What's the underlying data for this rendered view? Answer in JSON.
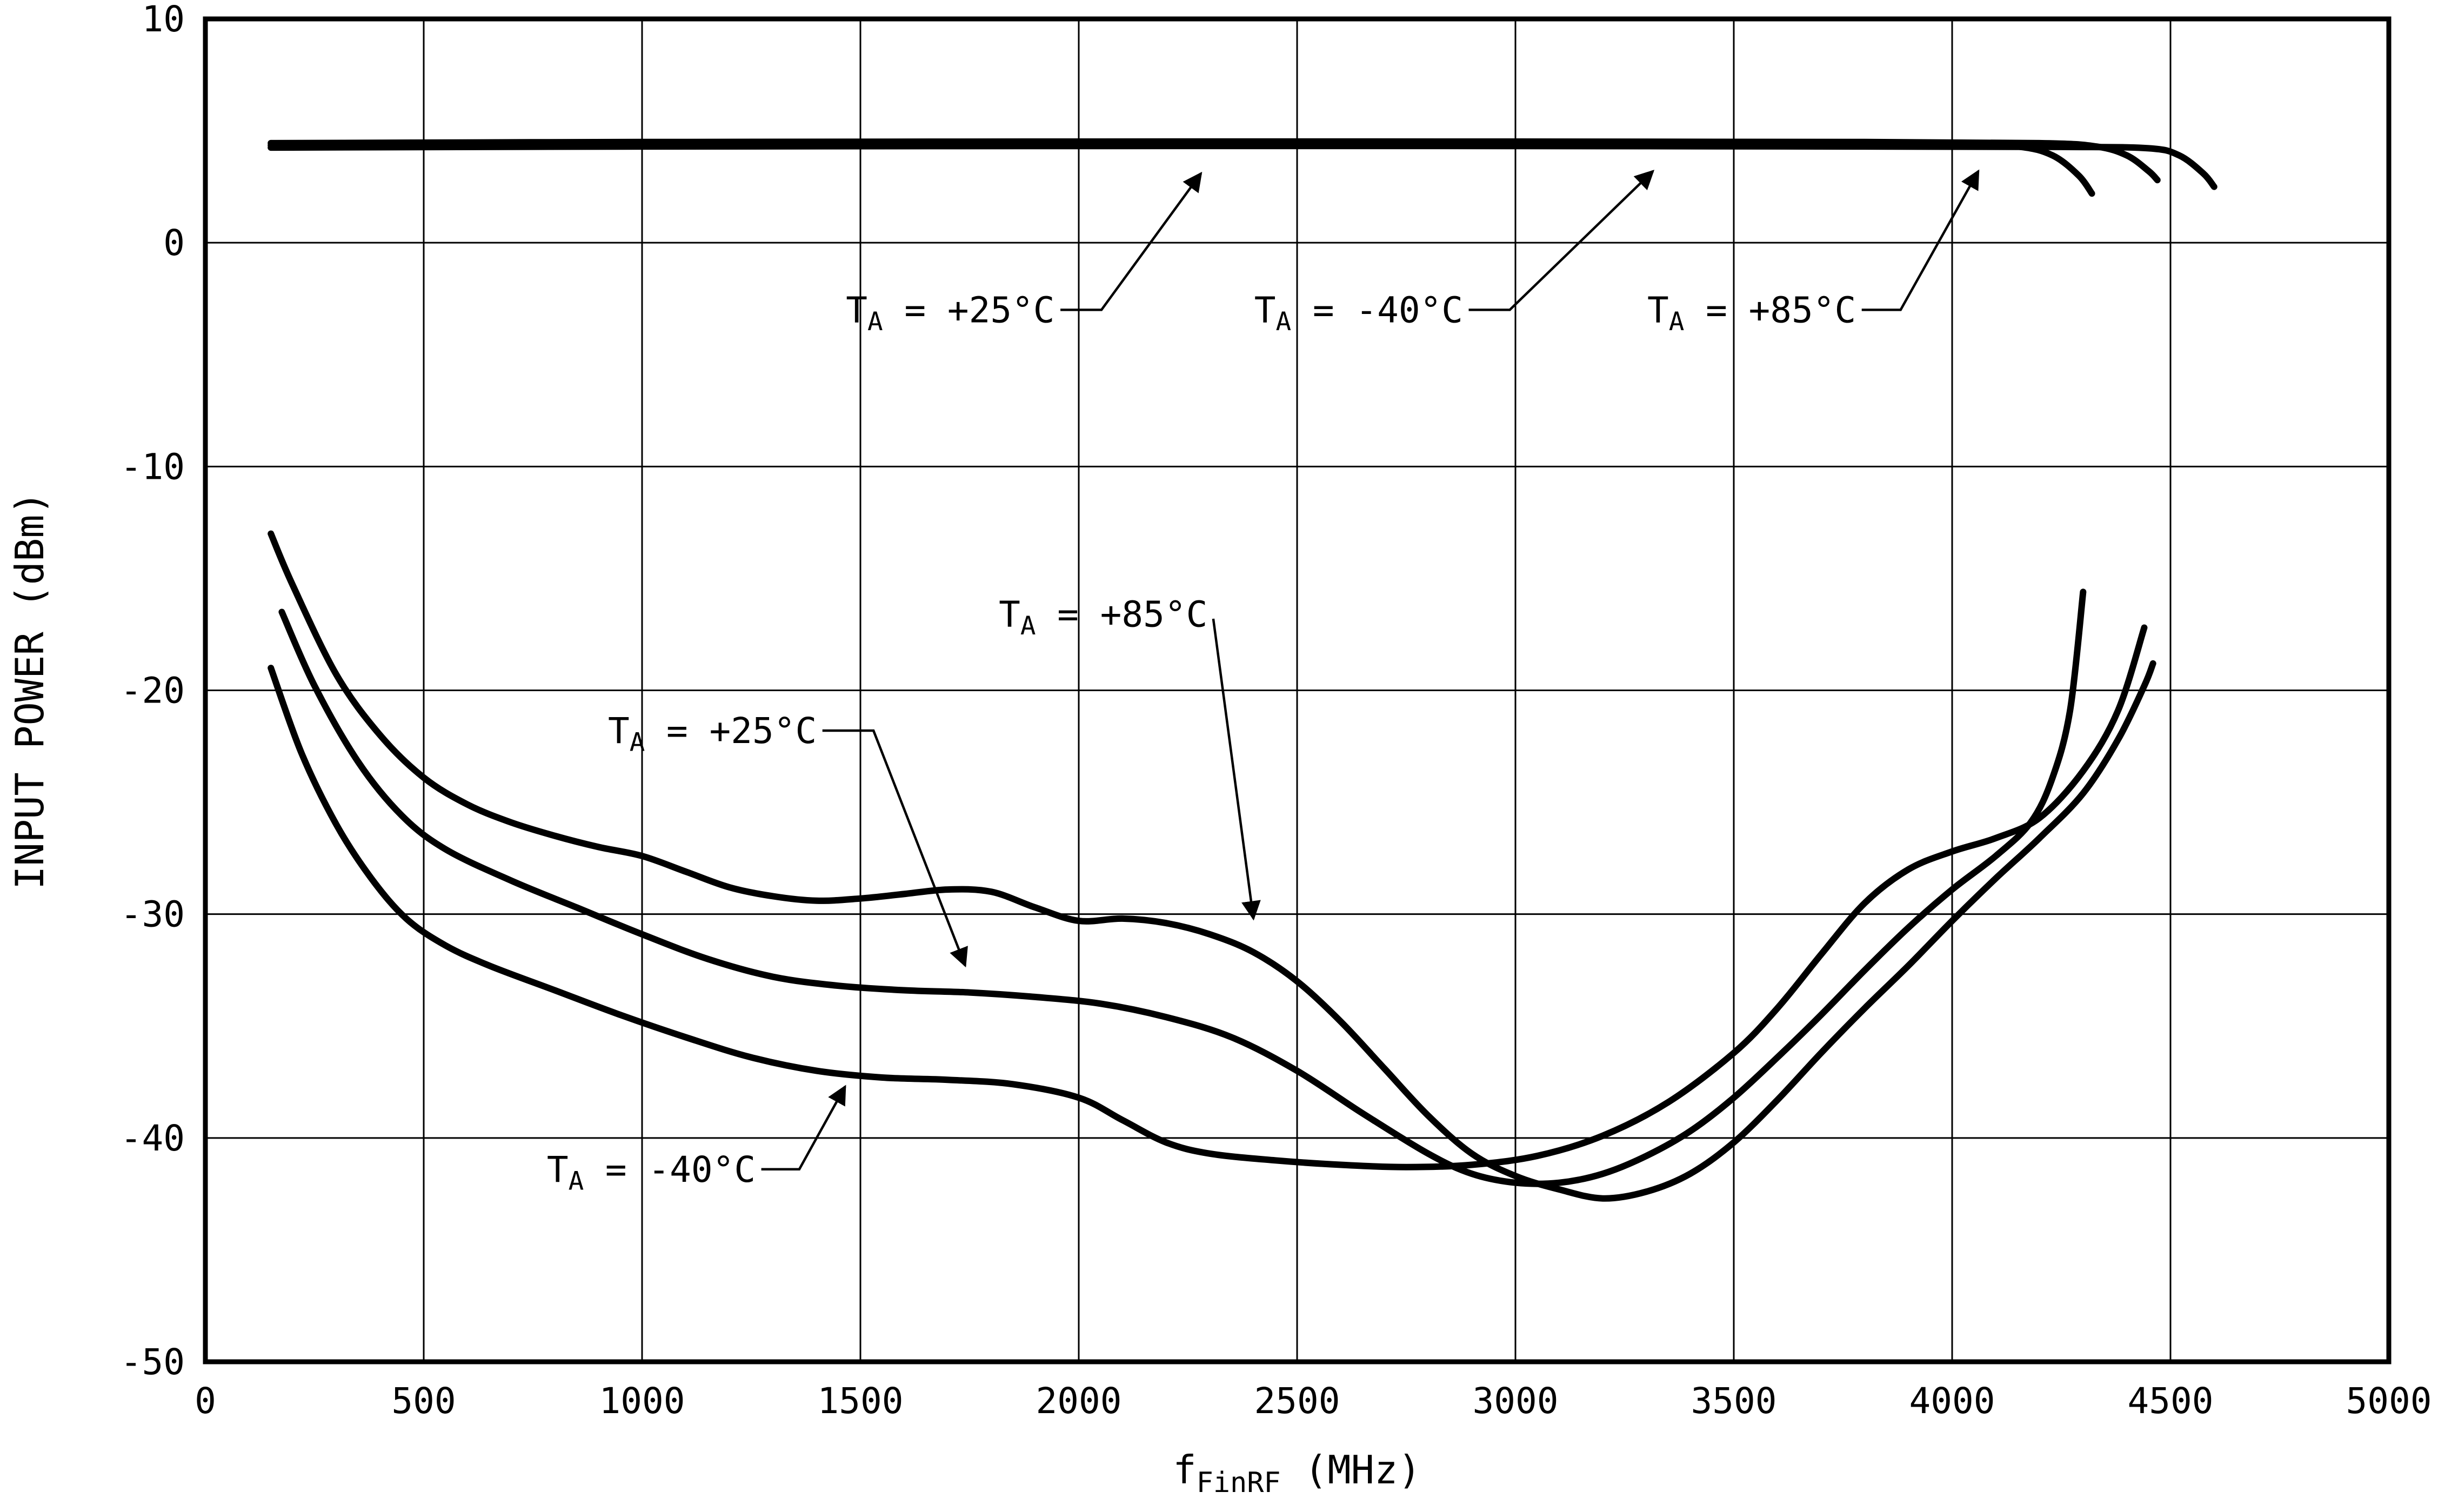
{
  "chart_data": {
    "type": "line",
    "title": "",
    "xlabel": {
      "prefix": "f",
      "sub": "FinRF",
      "suffix": " (MHz)"
    },
    "ylabel": "INPUT POWER (dBm)",
    "xlim": [
      0,
      5000
    ],
    "ylim": [
      -50,
      10
    ],
    "x_ticks": [
      0,
      500,
      1000,
      1500,
      2000,
      2500,
      3000,
      3500,
      4000,
      4500,
      5000
    ],
    "y_ticks": [
      10,
      0,
      -10,
      -20,
      -30,
      -40,
      -50
    ],
    "grid": true,
    "line_color": "#000000",
    "background": "#ffffff",
    "legend_position": "inline-annotations",
    "series": [
      {
        "name": "max-input-power-ta-plus25c",
        "label": "TA = +25°C",
        "points": [
          [
            150,
            4.35
          ],
          [
            1000,
            4.4
          ],
          [
            2000,
            4.42
          ],
          [
            3000,
            4.42
          ],
          [
            3600,
            4.4
          ],
          [
            4000,
            4.38
          ],
          [
            4150,
            4.3
          ],
          [
            4230,
            3.9
          ],
          [
            4290,
            3.0
          ],
          [
            4320,
            2.2
          ]
        ]
      },
      {
        "name": "max-input-power-ta-minus40c",
        "label": "TA = -40°C",
        "points": [
          [
            150,
            4.45
          ],
          [
            1000,
            4.5
          ],
          [
            2000,
            4.52
          ],
          [
            3000,
            4.52
          ],
          [
            3800,
            4.5
          ],
          [
            4200,
            4.45
          ],
          [
            4330,
            4.3
          ],
          [
            4400,
            3.9
          ],
          [
            4450,
            3.2
          ],
          [
            4470,
            2.8
          ]
        ]
      },
      {
        "name": "max-input-power-ta-plus85c",
        "label": "TA = +85°C",
        "points": [
          [
            150,
            4.25
          ],
          [
            1000,
            4.3
          ],
          [
            2000,
            4.32
          ],
          [
            3000,
            4.32
          ],
          [
            3800,
            4.3
          ],
          [
            4250,
            4.28
          ],
          [
            4450,
            4.22
          ],
          [
            4520,
            3.9
          ],
          [
            4575,
            3.1
          ],
          [
            4600,
            2.5
          ]
        ]
      },
      {
        "name": "min-input-power-ta-plus85c",
        "label": "TA = +85°C",
        "points": [
          [
            150,
            -13
          ],
          [
            200,
            -15.3
          ],
          [
            300,
            -19.3
          ],
          [
            400,
            -22
          ],
          [
            500,
            -23.9
          ],
          [
            600,
            -25.1
          ],
          [
            700,
            -25.9
          ],
          [
            800,
            -26.5
          ],
          [
            900,
            -27
          ],
          [
            1000,
            -27.4
          ],
          [
            1100,
            -28.1
          ],
          [
            1200,
            -28.8
          ],
          [
            1300,
            -29.2
          ],
          [
            1400,
            -29.4
          ],
          [
            1500,
            -29.3
          ],
          [
            1600,
            -29.1
          ],
          [
            1700,
            -28.9
          ],
          [
            1800,
            -29
          ],
          [
            1900,
            -29.7
          ],
          [
            2000,
            -30.3
          ],
          [
            2100,
            -30.2
          ],
          [
            2200,
            -30.4
          ],
          [
            2300,
            -30.9
          ],
          [
            2400,
            -31.7
          ],
          [
            2500,
            -33
          ],
          [
            2600,
            -34.8
          ],
          [
            2700,
            -36.9
          ],
          [
            2800,
            -39
          ],
          [
            2900,
            -40.7
          ],
          [
            3000,
            -41.7
          ],
          [
            3100,
            -42.3
          ],
          [
            3200,
            -42.7
          ],
          [
            3300,
            -42.4
          ],
          [
            3400,
            -41.6
          ],
          [
            3500,
            -40.2
          ],
          [
            3600,
            -38.3
          ],
          [
            3700,
            -36.2
          ],
          [
            3800,
            -34.2
          ],
          [
            3900,
            -32.3
          ],
          [
            4000,
            -30.3
          ],
          [
            4100,
            -28.4
          ],
          [
            4200,
            -26.6
          ],
          [
            4300,
            -24.6
          ],
          [
            4380,
            -22.2
          ],
          [
            4440,
            -19.8
          ],
          [
            4460,
            -18.8
          ]
        ]
      },
      {
        "name": "min-input-power-ta-plus25c",
        "label": "TA = +25°C",
        "points": [
          [
            175,
            -16.5
          ],
          [
            250,
            -19.8
          ],
          [
            350,
            -23.2
          ],
          [
            450,
            -25.6
          ],
          [
            550,
            -27.1
          ],
          [
            700,
            -28.5
          ],
          [
            850,
            -29.7
          ],
          [
            1000,
            -30.9
          ],
          [
            1150,
            -32
          ],
          [
            1300,
            -32.8
          ],
          [
            1450,
            -33.2
          ],
          [
            1600,
            -33.4
          ],
          [
            1750,
            -33.5
          ],
          [
            1900,
            -33.7
          ],
          [
            2050,
            -34
          ],
          [
            2200,
            -34.6
          ],
          [
            2350,
            -35.5
          ],
          [
            2500,
            -37
          ],
          [
            2650,
            -38.9
          ],
          [
            2800,
            -40.7
          ],
          [
            2900,
            -41.6
          ],
          [
            3000,
            -42
          ],
          [
            3100,
            -42
          ],
          [
            3200,
            -41.6
          ],
          [
            3300,
            -40.8
          ],
          [
            3400,
            -39.7
          ],
          [
            3500,
            -38.2
          ],
          [
            3600,
            -36.4
          ],
          [
            3700,
            -34.5
          ],
          [
            3800,
            -32.5
          ],
          [
            3900,
            -30.6
          ],
          [
            4000,
            -28.9
          ],
          [
            4100,
            -27.4
          ],
          [
            4180,
            -25.9
          ],
          [
            4230,
            -23.9
          ],
          [
            4270,
            -20.9
          ],
          [
            4300,
            -15.6
          ]
        ]
      },
      {
        "name": "min-input-power-ta-minus40c",
        "label": "TA = -40°C",
        "points": [
          [
            150,
            -19
          ],
          [
            220,
            -22.8
          ],
          [
            300,
            -26
          ],
          [
            380,
            -28.4
          ],
          [
            460,
            -30.2
          ],
          [
            550,
            -31.4
          ],
          [
            650,
            -32.3
          ],
          [
            800,
            -33.4
          ],
          [
            950,
            -34.5
          ],
          [
            1100,
            -35.5
          ],
          [
            1250,
            -36.4
          ],
          [
            1400,
            -37
          ],
          [
            1550,
            -37.3
          ],
          [
            1700,
            -37.4
          ],
          [
            1850,
            -37.6
          ],
          [
            2000,
            -38.2
          ],
          [
            2100,
            -39.2
          ],
          [
            2200,
            -40.2
          ],
          [
            2300,
            -40.7
          ],
          [
            2450,
            -41
          ],
          [
            2600,
            -41.2
          ],
          [
            2750,
            -41.3
          ],
          [
            2900,
            -41.2
          ],
          [
            3050,
            -40.8
          ],
          [
            3200,
            -39.9
          ],
          [
            3350,
            -38.4
          ],
          [
            3500,
            -36.2
          ],
          [
            3600,
            -34.2
          ],
          [
            3700,
            -31.8
          ],
          [
            3800,
            -29.5
          ],
          [
            3900,
            -28
          ],
          [
            4000,
            -27.2
          ],
          [
            4100,
            -26.6
          ],
          [
            4200,
            -25.7
          ],
          [
            4300,
            -23.6
          ],
          [
            4380,
            -20.9
          ],
          [
            4440,
            -17.2
          ]
        ]
      }
    ],
    "annotations": [
      {
        "name": "label-upper-ta-plus25c",
        "text": {
          "prefix": "T",
          "sub": "A",
          "suffix": " = +25°C"
        },
        "x": 1945,
        "y": -3.0,
        "anchor": "end",
        "leader": [
          [
            1958,
            -3.0
          ],
          [
            2052,
            -3.0
          ],
          [
            2280,
            3.1
          ]
        ]
      },
      {
        "name": "label-upper-ta-minus40c",
        "text": {
          "prefix": "T",
          "sub": "A",
          "suffix": " = -40°C"
        },
        "x": 2880,
        "y": -3.0,
        "anchor": "end",
        "leader": [
          [
            2893,
            -3.0
          ],
          [
            2987,
            -3.0
          ],
          [
            3315,
            3.2
          ]
        ]
      },
      {
        "name": "label-upper-ta-plus85c",
        "text": {
          "prefix": "T",
          "sub": "A",
          "suffix": " = +85°C"
        },
        "x": 3780,
        "y": -3.0,
        "anchor": "end",
        "leader": [
          [
            3793,
            -3.0
          ],
          [
            3882,
            -3.0
          ],
          [
            4060,
            3.2
          ]
        ]
      },
      {
        "name": "label-lower-ta-plus85c",
        "text": {
          "prefix": "T",
          "sub": "A",
          "suffix": " = +85°C"
        },
        "x": 2295,
        "y": -16.6,
        "anchor": "end",
        "leader": [
          [
            2308,
            -16.8
          ],
          [
            2400,
            -30.2
          ]
        ]
      },
      {
        "name": "label-lower-ta-plus25c",
        "text": {
          "prefix": "T",
          "sub": "A",
          "suffix": " = +25°C"
        },
        "x": 1400,
        "y": -21.8,
        "anchor": "end",
        "leader": [
          [
            1413,
            -21.8
          ],
          [
            1530,
            -21.8
          ],
          [
            1740,
            -32.3
          ]
        ]
      },
      {
        "name": "label-lower-ta-minus40c",
        "text": {
          "prefix": "T",
          "sub": "A",
          "suffix": " = -40°C"
        },
        "x": 1260,
        "y": -41.4,
        "anchor": "end",
        "leader": [
          [
            1273,
            -41.4
          ],
          [
            1360,
            -41.4
          ],
          [
            1465,
            -37.7
          ]
        ]
      }
    ]
  }
}
